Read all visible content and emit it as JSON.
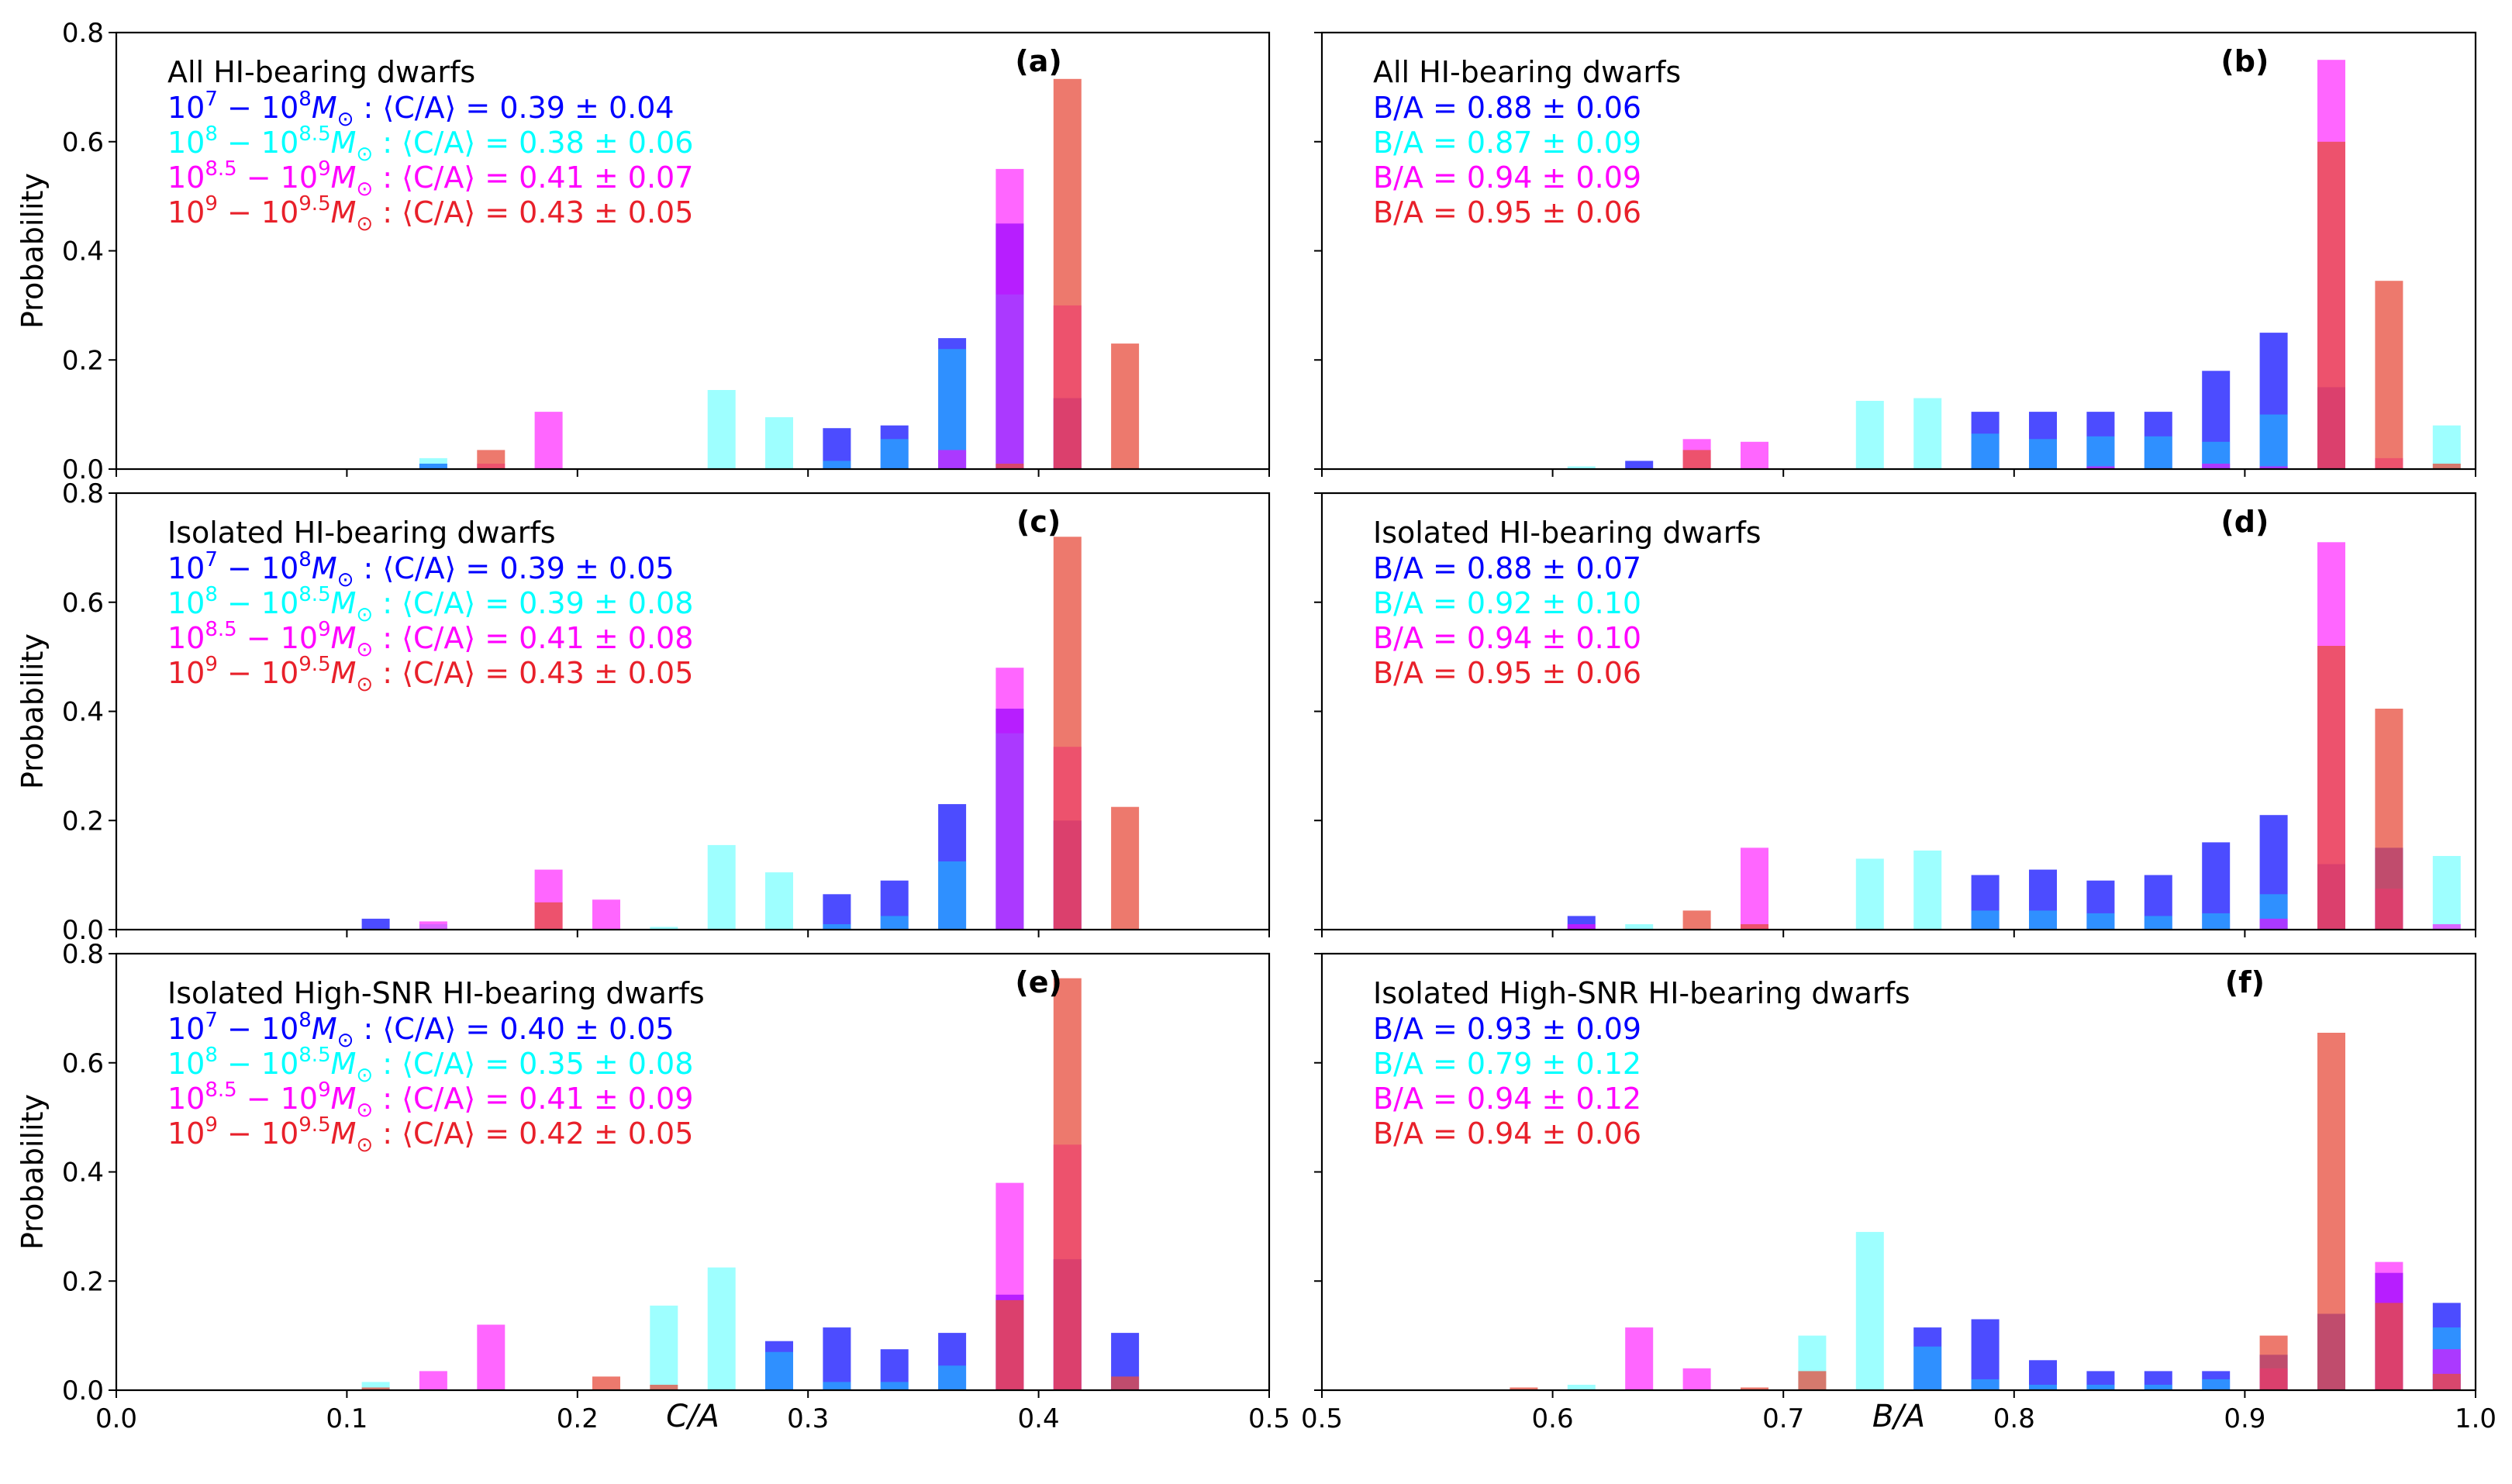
{
  "figure": {
    "ylabel": "Probability",
    "xlabel_left": "C/A",
    "xlabel_right": "B/A"
  },
  "colors": {
    "dark_blue": "#0000ff",
    "cyan": "#00ffff",
    "magenta": "#ff00ff",
    "red": "#e6141e",
    "salmon": "#e74c3c",
    "legend_red": "#e8202a"
  },
  "chart_data": [
    {
      "panel": "(a)",
      "type": "bar",
      "title": "All HI-bearing dwarfs",
      "xvar": "C/A",
      "xlim": [
        0.0,
        0.5
      ],
      "ylim": [
        0.0,
        0.8
      ],
      "bin_width": 0.025,
      "xticks": [
        "0.0",
        "0.1",
        "0.2",
        "0.3",
        "0.4",
        "0.5"
      ],
      "yticks": [
        "0.0",
        "0.2",
        "0.4",
        "0.6",
        "0.8"
      ],
      "legend": [
        {
          "mass": "10^7 – 10^8 M☉",
          "text": "⟨C/A⟩ = 0.39 ± 0.04",
          "color": "#0000ff"
        },
        {
          "mass": "10^8 – 10^8.5 M☉",
          "text": "⟨C/A⟩ = 0.38 ± 0.06",
          "color": "#00ffff"
        },
        {
          "mass": "10^8.5 – 10^9 M☉",
          "text": "⟨C/A⟩ = 0.41 ± 0.07",
          "color": "#ff00ff"
        },
        {
          "mass": "10^9 – 10^9.5 M☉",
          "text": "⟨C/A⟩ = 0.43 ± 0.05",
          "color": "#e8202a"
        }
      ],
      "series": [
        {
          "name": "10^7–10^8",
          "color": "#0000ff",
          "x": [
            0.1375,
            0.3125,
            0.3375,
            0.3625,
            0.3875,
            0.4125
          ],
          "y": [
            0.01,
            0.075,
            0.08,
            0.24,
            0.45,
            0.13
          ]
        },
        {
          "name": "10^8–10^8.5",
          "color": "#00ffff",
          "x": [
            0.1375,
            0.2625,
            0.2875,
            0.3125,
            0.3375,
            0.3625,
            0.3875
          ],
          "y": [
            0.02,
            0.145,
            0.095,
            0.015,
            0.055,
            0.22,
            0.32
          ]
        },
        {
          "name": "10^8.5–10^9",
          "color": "#ff00ff",
          "x": [
            0.1625,
            0.1875,
            0.3625,
            0.3875,
            0.4125
          ],
          "y": [
            0.01,
            0.105,
            0.035,
            0.55,
            0.3
          ]
        },
        {
          "name": "10^9–10^9.5",
          "color": "#e74c3c",
          "x": [
            0.1625,
            0.3875,
            0.4125,
            0.4375
          ],
          "y": [
            0.035,
            0.01,
            0.715,
            0.23
          ]
        }
      ]
    },
    {
      "panel": "(b)",
      "type": "bar",
      "title": "All HI-bearing dwarfs",
      "xvar": "B/A",
      "xlim": [
        0.5,
        1.0
      ],
      "ylim": [
        0.0,
        0.8
      ],
      "bin_width": 0.025,
      "xticks": [
        "0.5",
        "0.6",
        "0.7",
        "0.8",
        "0.9",
        "1.0"
      ],
      "legend": [
        {
          "text": "B/A = 0.88 ± 0.06",
          "color": "#0000ff"
        },
        {
          "text": "B/A = 0.87 ± 0.09",
          "color": "#00ffff"
        },
        {
          "text": "B/A = 0.94 ± 0.09",
          "color": "#ff00ff"
        },
        {
          "text": "B/A = 0.95 ± 0.06",
          "color": "#e8202a"
        }
      ],
      "series": [
        {
          "name": "10^7–10^8",
          "color": "#0000ff",
          "x": [
            0.6375,
            0.7875,
            0.8125,
            0.8375,
            0.8625,
            0.8875,
            0.9125,
            0.9375
          ],
          "y": [
            0.015,
            0.105,
            0.105,
            0.105,
            0.105,
            0.18,
            0.25,
            0.15
          ]
        },
        {
          "name": "10^8–10^8.5",
          "color": "#00ffff",
          "x": [
            0.6125,
            0.7375,
            0.7625,
            0.7875,
            0.8125,
            0.8375,
            0.8625,
            0.8875,
            0.9125,
            0.9875
          ],
          "y": [
            0.005,
            0.125,
            0.13,
            0.065,
            0.055,
            0.06,
            0.06,
            0.05,
            0.1,
            0.08
          ]
        },
        {
          "name": "10^8.5–10^9",
          "color": "#ff00ff",
          "x": [
            0.6625,
            0.6875,
            0.8375,
            0.8875,
            0.9125,
            0.9375,
            0.9625
          ],
          "y": [
            0.055,
            0.05,
            0.005,
            0.01,
            0.005,
            0.75,
            0.02
          ]
        },
        {
          "name": "10^9–10^9.5",
          "color": "#e74c3c",
          "x": [
            0.6625,
            0.9375,
            0.9625,
            0.9875
          ],
          "y": [
            0.035,
            0.6,
            0.345,
            0.01
          ]
        }
      ]
    },
    {
      "panel": "(c)",
      "type": "bar",
      "title": "Isolated HI-bearing dwarfs",
      "xvar": "C/A",
      "xlim": [
        0.0,
        0.5
      ],
      "ylim": [
        0.0,
        0.8
      ],
      "bin_width": 0.025,
      "legend": [
        {
          "mass": "10^7 – 10^8 M☉",
          "text": "⟨C/A⟩ = 0.39 ± 0.05",
          "color": "#0000ff"
        },
        {
          "mass": "10^8 – 10^8.5 M☉",
          "text": "⟨C/A⟩ = 0.39 ± 0.08",
          "color": "#00ffff"
        },
        {
          "mass": "10^8.5 – 10^9 M☉",
          "text": "⟨C/A⟩ = 0.41 ± 0.08",
          "color": "#ff00ff"
        },
        {
          "mass": "10^9 – 10^9.5 M☉",
          "text": "⟨C/A⟩ = 0.43 ± 0.05",
          "color": "#e8202a"
        }
      ],
      "series": [
        {
          "name": "10^7–10^8",
          "color": "#0000ff",
          "x": [
            0.1125,
            0.3125,
            0.3375,
            0.3625,
            0.3875,
            0.4125
          ],
          "y": [
            0.02,
            0.065,
            0.09,
            0.23,
            0.405,
            0.2
          ]
        },
        {
          "name": "10^8–10^8.5",
          "color": "#00ffff",
          "x": [
            0.1375,
            0.2375,
            0.2625,
            0.2875,
            0.3125,
            0.3375,
            0.3625,
            0.3875
          ],
          "y": [
            0.01,
            0.005,
            0.155,
            0.105,
            0.01,
            0.025,
            0.125,
            0.36
          ]
        },
        {
          "name": "10^8.5–10^9",
          "color": "#ff00ff",
          "x": [
            0.1375,
            0.1875,
            0.2125,
            0.3875,
            0.4125
          ],
          "y": [
            0.015,
            0.11,
            0.055,
            0.48,
            0.335
          ]
        },
        {
          "name": "10^9–10^9.5",
          "color": "#e74c3c",
          "x": [
            0.1875,
            0.4125,
            0.4375
          ],
          "y": [
            0.05,
            0.72,
            0.225
          ]
        }
      ]
    },
    {
      "panel": "(d)",
      "type": "bar",
      "title": "Isolated HI-bearing dwarfs",
      "xvar": "B/A",
      "xlim": [
        0.5,
        1.0
      ],
      "ylim": [
        0.0,
        0.8
      ],
      "bin_width": 0.025,
      "legend": [
        {
          "text": "B/A = 0.88 ± 0.07",
          "color": "#0000ff"
        },
        {
          "text": "B/A = 0.92 ± 0.10",
          "color": "#00ffff"
        },
        {
          "text": "B/A = 0.94 ± 0.10",
          "color": "#ff00ff"
        },
        {
          "text": "B/A = 0.95 ± 0.06",
          "color": "#e8202a"
        }
      ],
      "series": [
        {
          "name": "10^7–10^8",
          "color": "#0000ff",
          "x": [
            0.6125,
            0.7875,
            0.8125,
            0.8375,
            0.8625,
            0.8875,
            0.9125,
            0.9375,
            0.9625
          ],
          "y": [
            0.025,
            0.1,
            0.11,
            0.09,
            0.1,
            0.16,
            0.21,
            0.12,
            0.15
          ]
        },
        {
          "name": "10^8–10^8.5",
          "color": "#00ffff",
          "x": [
            0.6375,
            0.7375,
            0.7625,
            0.7875,
            0.8125,
            0.8375,
            0.8625,
            0.8875,
            0.9125,
            0.9875
          ],
          "y": [
            0.01,
            0.13,
            0.145,
            0.035,
            0.035,
            0.03,
            0.025,
            0.03,
            0.065,
            0.135
          ]
        },
        {
          "name": "10^8.5–10^9",
          "color": "#ff00ff",
          "x": [
            0.6125,
            0.6875,
            0.9125,
            0.9375,
            0.9625,
            0.9875
          ],
          "y": [
            0.01,
            0.15,
            0.02,
            0.71,
            0.075,
            0.01
          ]
        },
        {
          "name": "10^9–10^9.5",
          "color": "#e74c3c",
          "x": [
            0.6625,
            0.6875,
            0.9375,
            0.9625
          ],
          "y": [
            0.035,
            0.01,
            0.52,
            0.405
          ]
        }
      ]
    },
    {
      "panel": "(e)",
      "type": "bar",
      "title": "Isolated High-SNR HI-bearing dwarfs",
      "xvar": "C/A",
      "xlim": [
        0.0,
        0.5
      ],
      "ylim": [
        0.0,
        0.8
      ],
      "bin_width": 0.025,
      "legend": [
        {
          "mass": "10^7 – 10^8 M☉",
          "text": "⟨C/A⟩ = 0.40 ± 0.05",
          "color": "#0000ff"
        },
        {
          "mass": "10^8 – 10^8.5 M☉",
          "text": "⟨C/A⟩ = 0.35 ± 0.08",
          "color": "#00ffff"
        },
        {
          "mass": "10^8.5 – 10^9 M☉",
          "text": "⟨C/A⟩ = 0.41 ± 0.09",
          "color": "#ff00ff"
        },
        {
          "mass": "10^9 – 10^9.5 M☉",
          "text": "⟨C/A⟩ = 0.42 ± 0.05",
          "color": "#e8202a"
        }
      ],
      "series": [
        {
          "name": "10^7–10^8",
          "color": "#0000ff",
          "x": [
            0.2875,
            0.3125,
            0.3375,
            0.3625,
            0.3875,
            0.4125,
            0.4375
          ],
          "y": [
            0.09,
            0.115,
            0.075,
            0.105,
            0.175,
            0.24,
            0.105
          ]
        },
        {
          "name": "10^8–10^8.5",
          "color": "#00ffff",
          "x": [
            0.1125,
            0.2375,
            0.2625,
            0.2875,
            0.3125,
            0.3375,
            0.3625
          ],
          "y": [
            0.015,
            0.155,
            0.225,
            0.07,
            0.015,
            0.015,
            0.045
          ]
        },
        {
          "name": "10^8.5–10^9",
          "color": "#ff00ff",
          "x": [
            0.1375,
            0.1625,
            0.3875,
            0.4125
          ],
          "y": [
            0.035,
            0.12,
            0.38,
            0.45
          ]
        },
        {
          "name": "10^9–10^9.5",
          "color": "#e74c3c",
          "x": [
            0.1125,
            0.2125,
            0.2375,
            0.3875,
            0.4125,
            0.4375
          ],
          "y": [
            0.005,
            0.025,
            0.01,
            0.165,
            0.755,
            0.025
          ]
        }
      ]
    },
    {
      "panel": "(f)",
      "type": "bar",
      "title": "Isolated High-SNR HI-bearing dwarfs",
      "xvar": "B/A",
      "xlim": [
        0.5,
        1.0
      ],
      "ylim": [
        0.0,
        0.8
      ],
      "bin_width": 0.025,
      "legend": [
        {
          "text": "B/A = 0.93 ± 0.09",
          "color": "#0000ff"
        },
        {
          "text": "B/A = 0.79 ± 0.12",
          "color": "#00ffff"
        },
        {
          "text": "B/A = 0.94 ± 0.12",
          "color": "#ff00ff"
        },
        {
          "text": "B/A = 0.94 ± 0.06",
          "color": "#e8202a"
        }
      ],
      "series": [
        {
          "name": "10^7–10^8",
          "color": "#0000ff",
          "x": [
            0.7625,
            0.7875,
            0.8125,
            0.8375,
            0.8625,
            0.8875,
            0.9125,
            0.9375,
            0.9625,
            0.9875
          ],
          "y": [
            0.115,
            0.13,
            0.055,
            0.035,
            0.035,
            0.035,
            0.065,
            0.14,
            0.215,
            0.16
          ]
        },
        {
          "name": "10^8–10^8.5",
          "color": "#00ffff",
          "x": [
            0.6125,
            0.7125,
            0.7375,
            0.7625,
            0.7875,
            0.8125,
            0.8375,
            0.8625,
            0.8875,
            0.9875
          ],
          "y": [
            0.01,
            0.1,
            0.29,
            0.08,
            0.02,
            0.01,
            0.01,
            0.01,
            0.02,
            0.115
          ]
        },
        {
          "name": "10^8.5–10^9",
          "color": "#ff00ff",
          "x": [
            0.6375,
            0.6625,
            0.9125,
            0.9625,
            0.9875
          ],
          "y": [
            0.115,
            0.04,
            0.04,
            0.235,
            0.075
          ]
        },
        {
          "name": "10^9–10^9.5",
          "color": "#e74c3c",
          "x": [
            0.5875,
            0.6875,
            0.7125,
            0.9125,
            0.9375,
            0.9625,
            0.9875
          ],
          "y": [
            0.005,
            0.005,
            0.035,
            0.1,
            0.655,
            0.16,
            0.03
          ]
        }
      ]
    }
  ]
}
